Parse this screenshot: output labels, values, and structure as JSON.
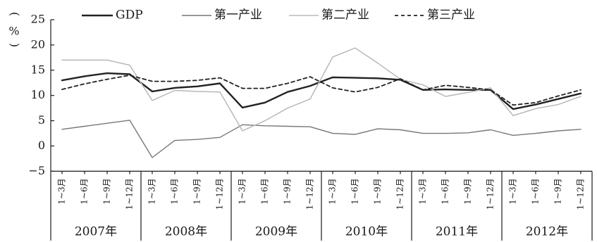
{
  "chart_data": {
    "type": "line",
    "ylabel": "%",
    "ylim": [
      -5,
      25
    ],
    "yticks": [
      -5,
      0,
      5,
      10,
      15,
      20,
      25
    ],
    "grid": false,
    "legend_position": "top",
    "years": [
      "2007年",
      "2008年",
      "2009年",
      "2010年",
      "2011年",
      "2012年"
    ],
    "quarters": [
      "1~3月",
      "1~6月",
      "1~9月",
      "1~12月"
    ],
    "series": [
      {
        "name": "GDP",
        "style": "solid-thick",
        "color": "#222222",
        "values": [
          13.0,
          13.8,
          14.4,
          14.2,
          10.8,
          11.5,
          11.8,
          12.4,
          7.6,
          8.6,
          10.7,
          11.9,
          13.6,
          13.5,
          13.4,
          13.1,
          11.1,
          11.2,
          11.1,
          11.1,
          7.3,
          8.2,
          9.3,
          10.4
        ]
      },
      {
        "name": "第一产业",
        "style": "solid-thin",
        "color": "#777777",
        "values": [
          3.3,
          3.9,
          4.5,
          5.1,
          -2.3,
          1.1,
          1.3,
          1.7,
          4.2,
          4.0,
          3.9,
          3.8,
          2.5,
          2.3,
          3.4,
          3.2,
          2.5,
          2.5,
          2.6,
          3.2,
          2.1,
          2.5,
          3.0,
          3.3
        ]
      },
      {
        "name": "第二产业",
        "style": "solid-light",
        "color": "#b8b8b8",
        "values": [
          17.0,
          17.0,
          17.0,
          16.0,
          9.0,
          11.0,
          10.8,
          10.7,
          3.0,
          5.0,
          7.5,
          9.3,
          17.6,
          19.4,
          16.4,
          13.2,
          12.1,
          9.8,
          10.6,
          11.5,
          6.0,
          7.4,
          8.2,
          9.8
        ]
      },
      {
        "name": "第三产业",
        "style": "dashed",
        "color": "#222222",
        "values": [
          11.2,
          12.3,
          13.2,
          14.0,
          12.8,
          12.8,
          13.0,
          13.5,
          11.4,
          11.4,
          12.4,
          13.7,
          11.5,
          10.7,
          11.6,
          13.3,
          11.1,
          12.0,
          11.6,
          11.1,
          8.1,
          8.6,
          9.9,
          11.1
        ]
      }
    ]
  }
}
